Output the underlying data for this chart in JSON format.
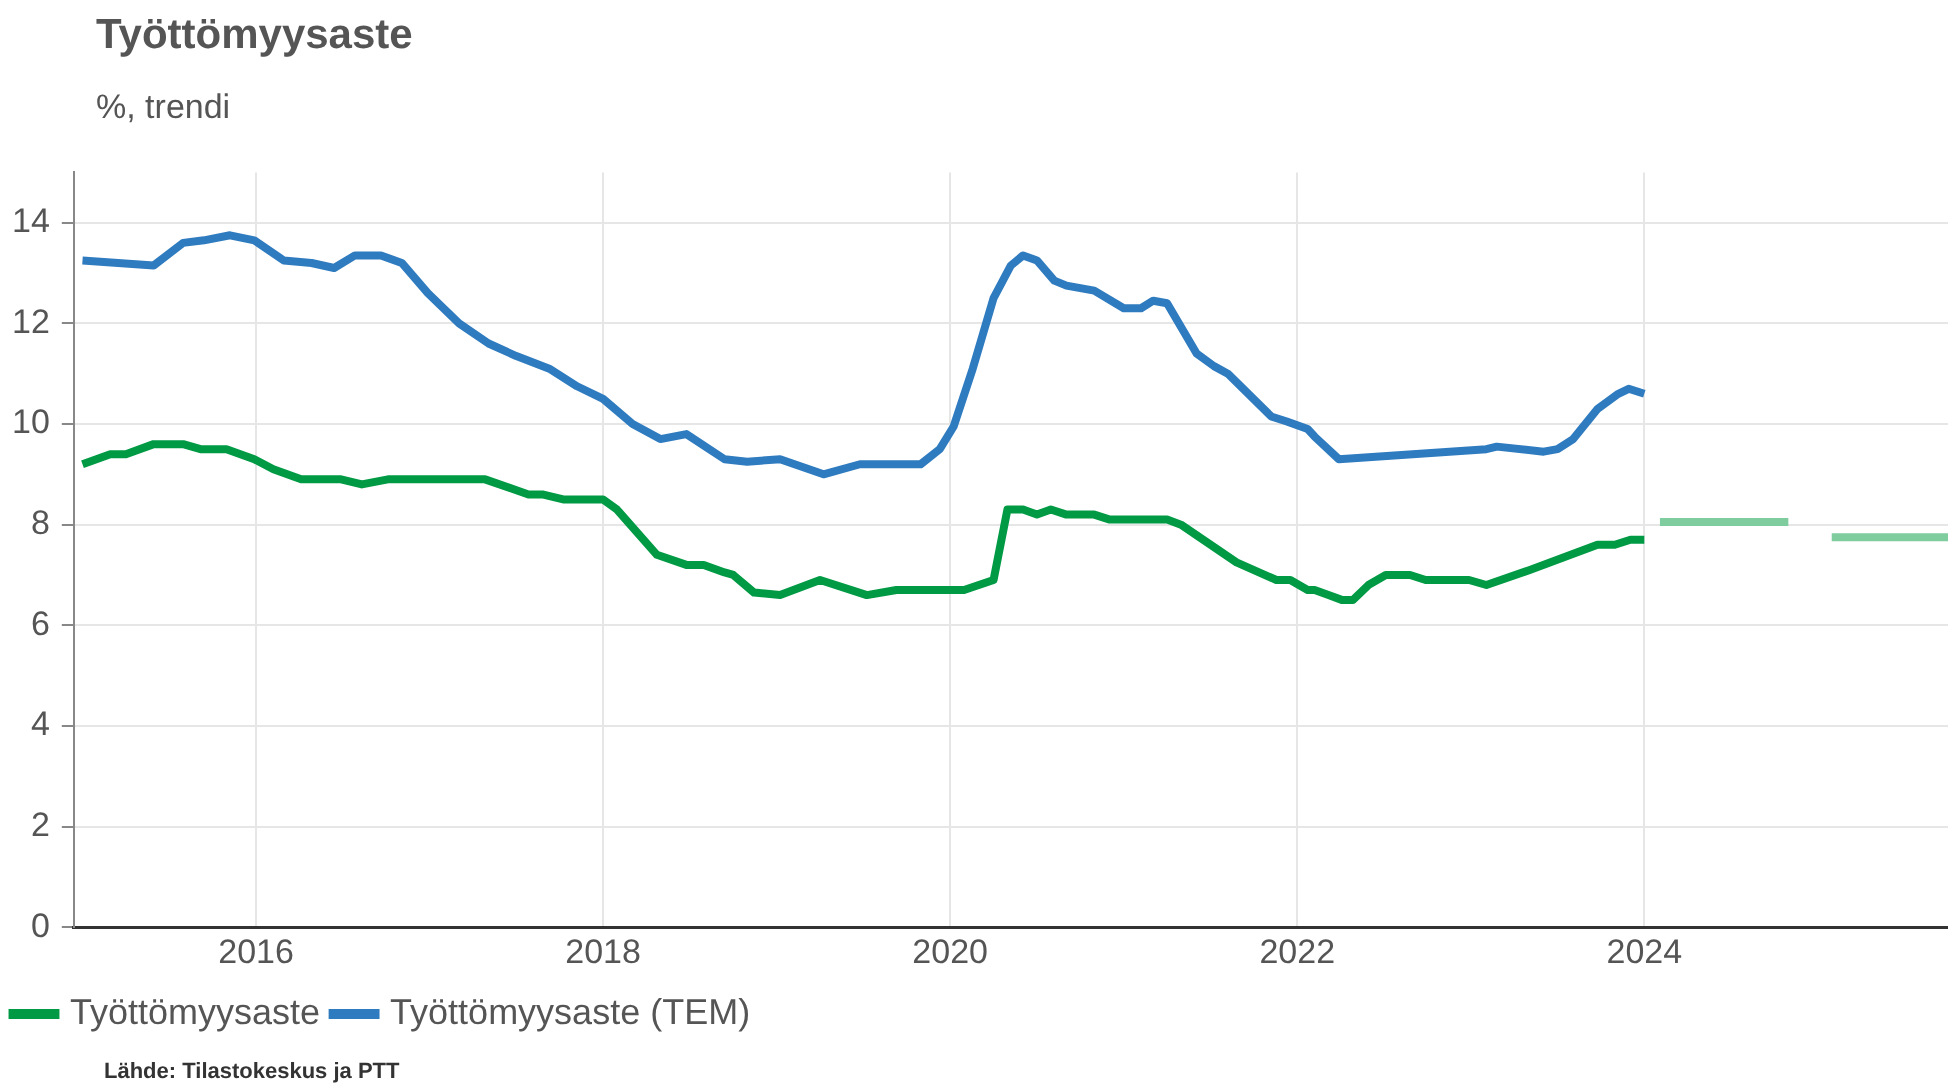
{
  "chart_data": {
    "type": "line",
    "title": "Työttömyysaste",
    "subtitle": "%, trendi",
    "annotations": [
      "Lähde: Tilastokeskus ja PTT"
    ],
    "series": [
      {
        "name": "Työttömyysaste",
        "color": "#009a44",
        "x": [
          2015.0,
          2015.16,
          2015.25,
          2015.41,
          2015.58,
          2015.68,
          2015.83,
          2015.99,
          2016.1,
          2016.26,
          2016.49,
          2016.61,
          2016.76,
          2017.32,
          2017.57,
          2017.65,
          2017.77,
          2018.0,
          2018.08,
          2018.31,
          2018.48,
          2018.58,
          2018.7,
          2018.75,
          2018.87,
          2019.02,
          2019.25,
          2019.52,
          2019.69,
          2020.08,
          2020.25,
          2020.33,
          2020.42,
          2020.5,
          2020.58,
          2020.67,
          2020.83,
          2020.92,
          2021.25,
          2021.33,
          2021.65,
          2021.88,
          2021.96,
          2022.06,
          2022.1,
          2022.18,
          2022.26,
          2022.32,
          2022.41,
          2022.51,
          2022.65,
          2022.74,
          2022.99,
          2023.09,
          2023.34,
          2023.73,
          2023.83,
          2023.92,
          2024.0
        ],
        "values": [
          9.2,
          9.4,
          9.4,
          9.6,
          9.6,
          9.5,
          9.5,
          9.3,
          9.1,
          8.9,
          8.9,
          8.8,
          8.9,
          8.9,
          8.6,
          8.6,
          8.5,
          8.5,
          8.3,
          7.4,
          7.2,
          7.2,
          7.05,
          7.0,
          6.65,
          6.6,
          6.9,
          6.6,
          6.7,
          6.7,
          6.9,
          8.3,
          8.3,
          8.2,
          8.3,
          8.2,
          8.2,
          8.1,
          8.1,
          8.0,
          7.25,
          6.9,
          6.9,
          6.7,
          6.7,
          6.6,
          6.5,
          6.5,
          6.8,
          7.0,
          7.0,
          6.9,
          6.9,
          6.8,
          7.1,
          7.6,
          7.6,
          7.7,
          7.7
        ]
      },
      {
        "name": "Työttömyysaste (TEM)",
        "color": "#2f7bbf",
        "x": [
          2015.0,
          2015.41,
          2015.58,
          2015.7,
          2015.85,
          2015.99,
          2016.16,
          2016.32,
          2016.45,
          2016.57,
          2016.72,
          2016.84,
          2016.99,
          2017.17,
          2017.34,
          2017.5,
          2017.69,
          2017.85,
          2018.0,
          2018.17,
          2018.33,
          2018.48,
          2018.7,
          2018.83,
          2019.02,
          2019.27,
          2019.48,
          2019.63,
          2019.83,
          2019.94,
          2020.02,
          2020.13,
          2020.25,
          2020.35,
          2020.42,
          2020.5,
          2020.6,
          2020.67,
          2020.83,
          2021.0,
          2021.1,
          2021.17,
          2021.25,
          2021.42,
          2021.52,
          2021.6,
          2021.85,
          2021.94,
          2022.06,
          2022.1,
          2022.24,
          2023.09,
          2023.15,
          2023.42,
          2023.5,
          2023.59,
          2023.73,
          2023.85,
          2023.91,
          2024.0
        ],
        "values": [
          13.25,
          13.15,
          13.6,
          13.65,
          13.75,
          13.65,
          13.25,
          13.2,
          13.1,
          13.35,
          13.35,
          13.2,
          12.6,
          12.0,
          11.6,
          11.35,
          11.1,
          10.75,
          10.5,
          10.0,
          9.7,
          9.8,
          9.3,
          9.25,
          9.3,
          9.0,
          9.2,
          9.2,
          9.2,
          9.5,
          9.95,
          11.1,
          12.5,
          13.15,
          13.35,
          13.25,
          12.85,
          12.75,
          12.65,
          12.3,
          12.3,
          12.45,
          12.4,
          11.4,
          11.15,
          11.0,
          10.15,
          10.05,
          9.9,
          9.75,
          9.3,
          9.5,
          9.55,
          9.45,
          9.5,
          9.7,
          10.3,
          10.6,
          10.7,
          10.6
        ]
      },
      {
        "color": "#7fcc9f",
        "x": [
          2024.09,
          2024.83,
          2024.95,
          2025.08,
          2025.75
        ],
        "values": [
          8.05,
          8.05,
          null,
          7.75,
          7.75
        ]
      }
    ],
    "xlim": [
      2014.95,
      2025.75
    ],
    "xticks": [
      2016,
      2018,
      2020,
      2022,
      2024
    ],
    "ylim": [
      0,
      15
    ],
    "yticks": [
      0,
      2,
      4,
      6,
      8,
      10,
      12,
      14
    ],
    "grid": true,
    "legend": "bottom left",
    "marker": "none",
    "line_style": "solid"
  }
}
